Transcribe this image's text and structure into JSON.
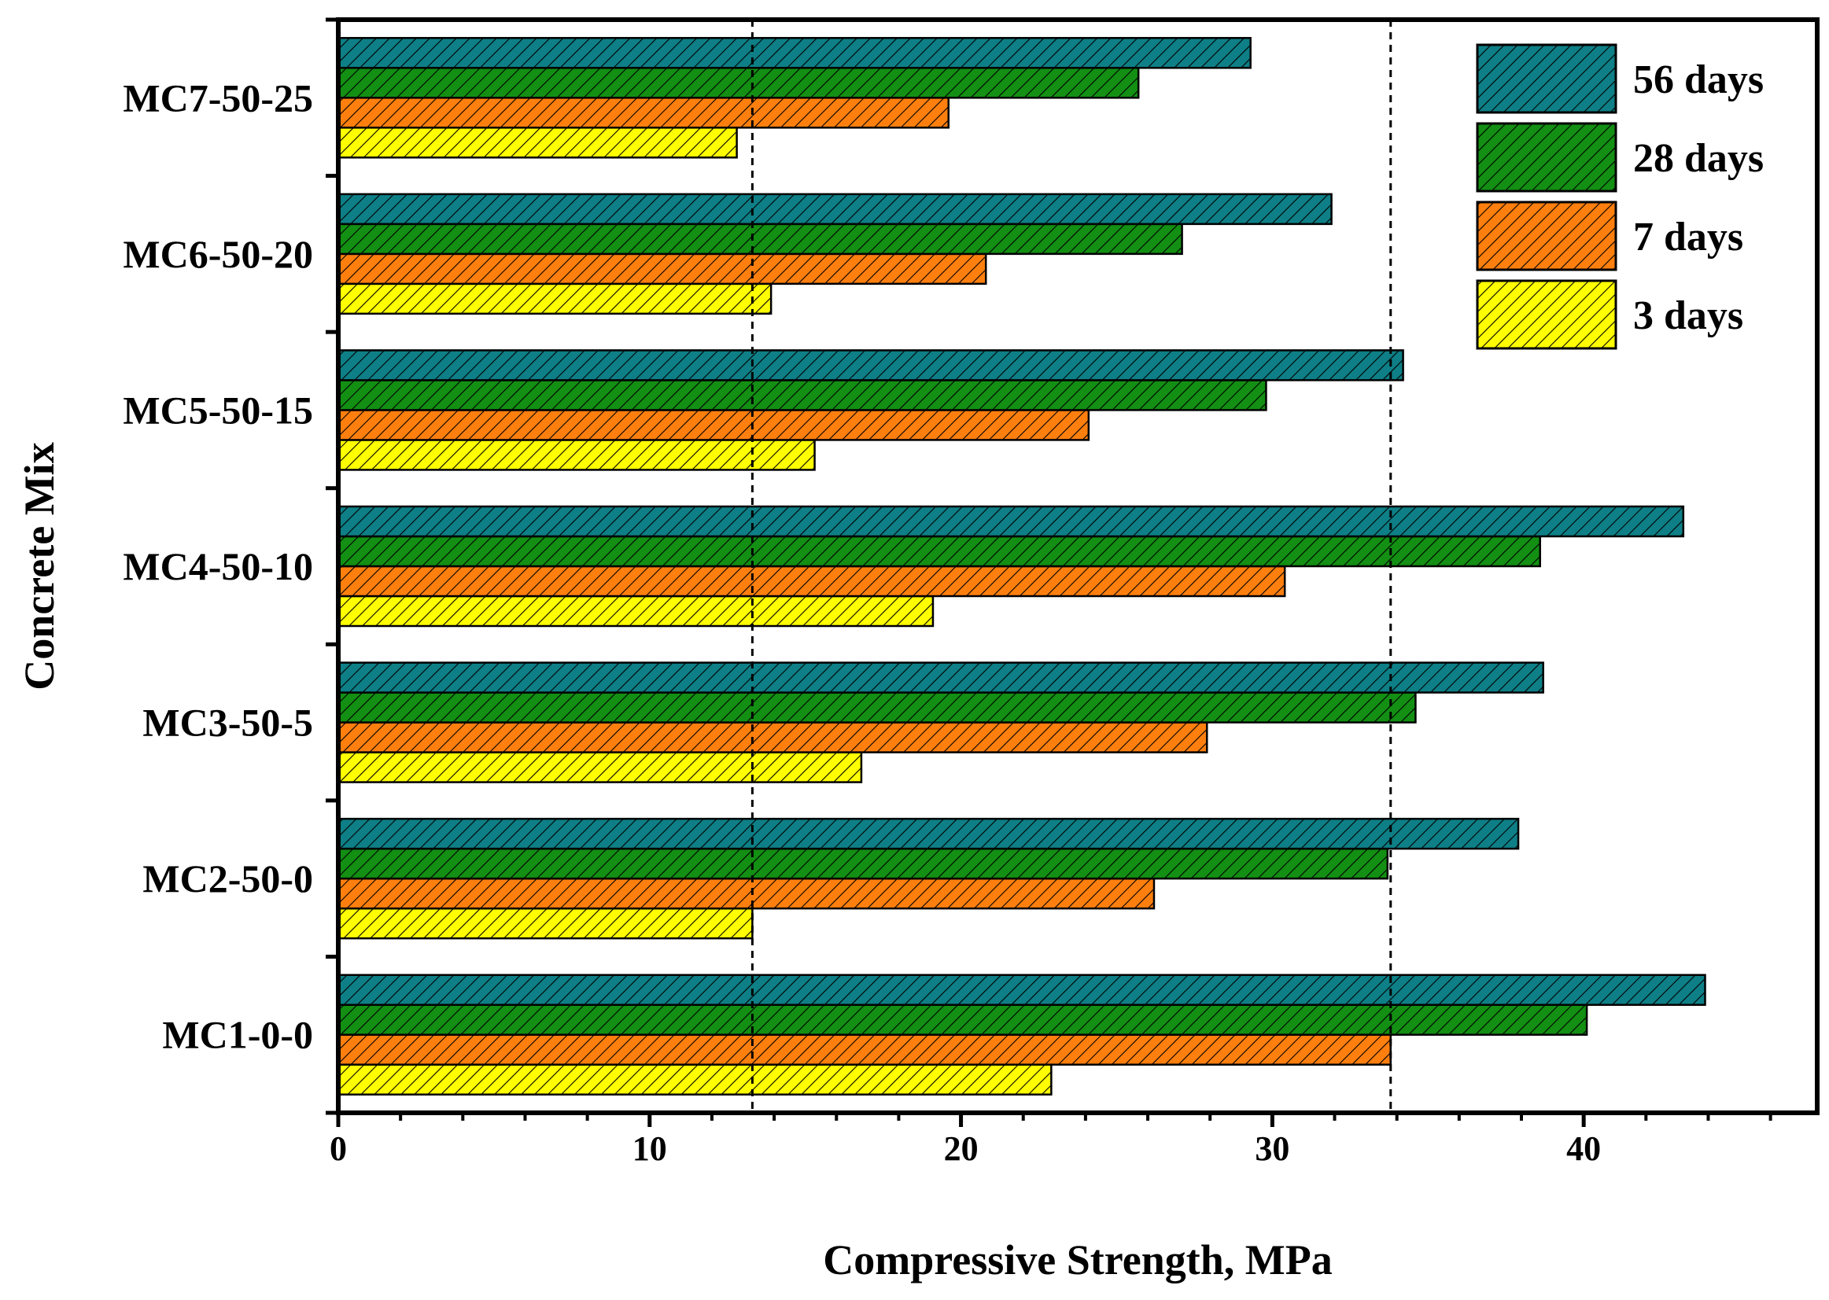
{
  "chart_data": {
    "type": "bar",
    "orientation": "horizontal",
    "title": "",
    "xlabel": "Compressive Strength, MPa",
    "ylabel": "Concrete Mix",
    "xlim": [
      0,
      47.5
    ],
    "xticks": [
      0,
      10,
      20,
      30,
      40
    ],
    "xtick_labels": [
      "0",
      "10",
      "20",
      "30",
      "40"
    ],
    "categories": [
      "MC1-0-0",
      "MC2-50-0",
      "MC3-50-5",
      "MC4-50-10",
      "MC5-50-15",
      "MC6-50-20",
      "MC7-50-25"
    ],
    "series": [
      {
        "name": "3 days",
        "color": "#ffff00",
        "values": [
          22.9,
          13.3,
          16.8,
          19.1,
          15.3,
          13.9,
          12.8
        ]
      },
      {
        "name": "7 days",
        "color": "#ff7f0e",
        "values": [
          33.8,
          26.2,
          27.9,
          30.4,
          24.1,
          20.8,
          19.6
        ]
      },
      {
        "name": "28 days",
        "color": "#138f13",
        "values": [
          40.1,
          33.7,
          34.6,
          38.6,
          29.8,
          27.1,
          25.7
        ]
      },
      {
        "name": "56 days",
        "color": "#0e7f86",
        "values": [
          43.9,
          37.9,
          38.7,
          43.2,
          34.2,
          31.9,
          29.3
        ]
      }
    ],
    "reference_lines": [
      13.3,
      33.8
    ],
    "legend_order": [
      "56 days",
      "28 days",
      "7 days",
      "3 days"
    ],
    "legend_position": "top-right",
    "grid": false
  }
}
